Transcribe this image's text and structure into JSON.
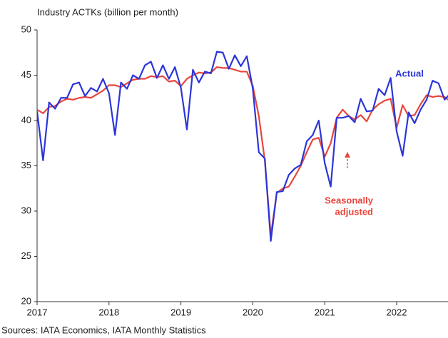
{
  "chart_data": {
    "type": "line",
    "y_axis_label": "Industry ACTKs (billion per month)",
    "source": "Sources: IATA Economics, IATA Monthly Statistics",
    "categories": [
      "2017",
      null,
      null,
      null,
      null,
      null,
      null,
      null,
      null,
      null,
      null,
      null,
      "2018",
      null,
      null,
      null,
      null,
      null,
      null,
      null,
      null,
      null,
      null,
      null,
      "2019",
      null,
      null,
      null,
      null,
      null,
      null,
      null,
      null,
      null,
      null,
      null,
      "2020",
      null,
      null,
      null,
      null,
      null,
      null,
      null,
      null,
      null,
      null,
      null,
      "2021",
      null,
      null,
      null,
      null,
      null,
      null,
      null,
      null,
      null,
      null,
      null,
      "2022",
      null,
      null,
      null,
      null,
      null,
      null,
      null,
      null,
      null
    ],
    "series": [
      {
        "name": "Actual",
        "color": "#2b35d9",
        "values": [
          41,
          35.6,
          42,
          41.3,
          42.5,
          42.5,
          44,
          44.2,
          42.7,
          43.6,
          43.2,
          44.6,
          43,
          38.4,
          44.2,
          43.5,
          45,
          44.6,
          46.1,
          46.5,
          44.7,
          46.1,
          44.6,
          45.9,
          43.6,
          39,
          45.6,
          44.2,
          45.4,
          45.2,
          47.6,
          47.5,
          45.7,
          47.2,
          46,
          47.1,
          43.5,
          36.5,
          35.8,
          26.7,
          32.1,
          32.2,
          34,
          34.7,
          35.1,
          37.7,
          38.4,
          40,
          35.3,
          32.7,
          40.3,
          40.3,
          40.5,
          39.8,
          42.4,
          41,
          41.1,
          43.5,
          42.8,
          44.7,
          38.8,
          36.1,
          40.9,
          39.7,
          41.2,
          42.3,
          44.4,
          44.1,
          42.3,
          43
        ]
      },
      {
        "name": "Seasonally adjusted",
        "color": "#e8453c",
        "values": [
          41.2,
          40.8,
          41.5,
          41.6,
          42.1,
          42.4,
          42.3,
          42.5,
          42.6,
          42.5,
          42.9,
          43.3,
          43.9,
          43.9,
          43.7,
          44.1,
          44.5,
          44.6,
          44.6,
          44.9,
          44.8,
          44.9,
          44.3,
          44.4,
          43.8,
          44.6,
          45,
          45.3,
          45.2,
          45.3,
          45.9,
          45.8,
          45.8,
          45.6,
          45.4,
          45.4,
          43.8,
          40.5,
          35.6,
          27.3,
          32,
          32.5,
          32.7,
          33.8,
          35,
          36.5,
          37.9,
          38.1,
          36,
          37.5,
          40.3,
          41.2,
          40.5,
          40.1,
          40.6,
          39.9,
          41.2,
          41.8,
          42.2,
          42.4,
          39.2,
          41.7,
          40.5,
          40.6,
          41.8,
          42.8,
          42.6,
          42.7,
          42.6,
          42.1
        ]
      }
    ],
    "annotations": [
      [
        "Actual"
      ],
      [
        "Seasonally",
        "adjusted"
      ]
    ],
    "ylim": [
      20,
      50
    ],
    "yticks": [
      20,
      25,
      30,
      35,
      40,
      45,
      50
    ]
  }
}
